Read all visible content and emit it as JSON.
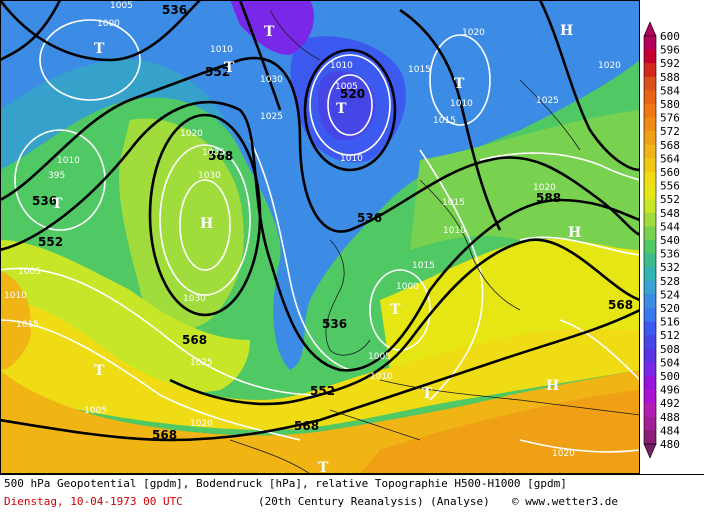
{
  "legend": {
    "values": [
      "600",
      "596",
      "592",
      "588",
      "584",
      "580",
      "576",
      "572",
      "568",
      "564",
      "560",
      "556",
      "552",
      "548",
      "544",
      "540",
      "536",
      "532",
      "528",
      "524",
      "520",
      "516",
      "512",
      "508",
      "504",
      "500",
      "496",
      "492",
      "488",
      "484",
      "480"
    ],
    "colors": [
      "#b4005a",
      "#c80032",
      "#d2281e",
      "#dc501e",
      "#e66414",
      "#f07814",
      "#f08c14",
      "#f0a014",
      "#f0b414",
      "#f0c814",
      "#f0dc14",
      "#e6e614",
      "#c8e628",
      "#a0dc3c",
      "#78d250",
      "#50c864",
      "#3cbe8c",
      "#32b4b4",
      "#3ca0d2",
      "#3c8ce6",
      "#3c78f0",
      "#3c5af0",
      "#4646e6",
      "#5a32e6",
      "#7828e6",
      "#9614dc",
      "#aa14d2",
      "#b41eb4",
      "#a01e96",
      "#8c1e78",
      "#781e64"
    ]
  },
  "map": {
    "height_labels": [
      "536",
      "552",
      "552",
      "568",
      "520",
      "536",
      "588",
      "568",
      "536",
      "552",
      "568",
      "568",
      "568",
      "568",
      "536"
    ],
    "pressure_labels": [
      "1005",
      "1000",
      "395",
      "1005",
      "1010",
      "1015",
      "1010",
      "1030",
      "1020",
      "1035",
      "1030",
      "1025",
      "1015",
      "1010",
      "1005",
      "1010",
      "1020",
      "1015",
      "1010",
      "1025",
      "1010",
      "1015",
      "1005",
      "1010",
      "1030",
      "1025",
      "1015",
      "1000",
      "1005",
      "1010",
      "1020",
      "1020",
      "1020",
      "1020"
    ],
    "lows": [
      "T",
      "T",
      "T",
      "T",
      "T",
      "T",
      "T",
      "T",
      "T",
      "T"
    ],
    "highs": [
      "H",
      "H",
      "H",
      "H",
      "H"
    ]
  },
  "footer": {
    "description": "500 hPa Geopotential [gpdm], Bodendruck [hPa], relative Topographie H500-H1000 [gpdm]",
    "date": "Dienstag, 10-04-1973  00 UTC",
    "source": "(20th Century Reanalysis)  (Analyse)",
    "credit": "© www.wetter3.de"
  }
}
